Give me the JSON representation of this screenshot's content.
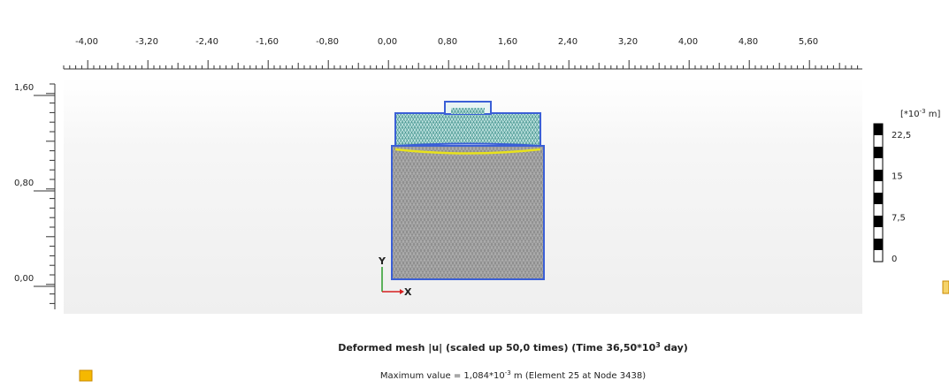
{
  "ruler_x": {
    "labels": [
      "-4,00",
      "-3,20",
      "-2,40",
      "-1,60",
      "-0,80",
      "0,00",
      "0,80",
      "1,60",
      "2,40",
      "3,20",
      "4,00",
      "4,80",
      "5,60"
    ]
  },
  "ruler_y": {
    "labels": [
      "1,60",
      "0,80",
      "0,00"
    ]
  },
  "axis_labels": {
    "x": "X",
    "y": "Y"
  },
  "legend": {
    "unit_prefix": "[*10",
    "unit_exponent": "-3",
    "unit_suffix": " m]",
    "labels": [
      "22,5",
      "15",
      "7,5",
      "0"
    ]
  },
  "caption": {
    "title_main": "Deformed mesh |u| (scaled up 50,0 times) (Time 36,50*10",
    "title_exponent": "3",
    "title_end": " day)",
    "max_prefix": "Maximum value = 1,084*10",
    "max_exponent": "-3",
    "max_suffix": " m (Element 25 at Node 3438)"
  }
}
